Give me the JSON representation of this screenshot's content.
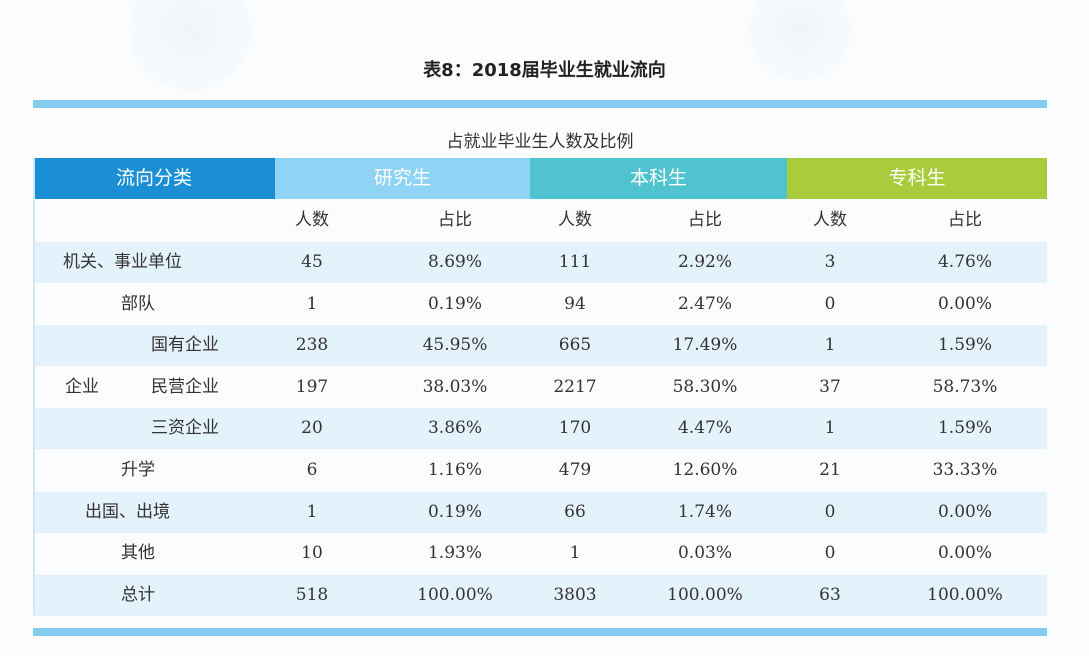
{
  "title": "表8：2018届毕业生就业流向",
  "subtitle": "占就业毕业生人数及比例",
  "colors": {
    "category": "#1a8fd6",
    "graduate": "#8fd3f5",
    "undergraduate": "#4fc3cf",
    "college": "#a8cc3c",
    "bar": "#86ccf0"
  },
  "headers": {
    "category": "流向分类",
    "graduate": "研究生",
    "undergraduate": "本科生",
    "college": "专科生"
  },
  "subheaders": [
    "人数",
    "占比",
    "人数",
    "占比",
    "人数",
    "占比"
  ],
  "group_label": "企业",
  "rows": [
    {
      "label": "机关、事业单位",
      "values": [
        "45",
        "8.69%",
        "111",
        "2.92%",
        "3",
        "4.76%"
      ]
    },
    {
      "label": "部队",
      "values": [
        "1",
        "0.19%",
        "94",
        "2.47%",
        "0",
        "0.00%"
      ]
    },
    {
      "label": "国有企业",
      "values": [
        "238",
        "45.95%",
        "665",
        "17.49%",
        "1",
        "1.59%"
      ]
    },
    {
      "label": "民营企业",
      "values": [
        "197",
        "38.03%",
        "2217",
        "58.30%",
        "37",
        "58.73%"
      ]
    },
    {
      "label": "三资企业",
      "values": [
        "20",
        "3.86%",
        "170",
        "4.47%",
        "1",
        "1.59%"
      ]
    },
    {
      "label": "升学",
      "values": [
        "6",
        "1.16%",
        "479",
        "12.60%",
        "21",
        "33.33%"
      ]
    },
    {
      "label": "出国、出境",
      "values": [
        "1",
        "0.19%",
        "66",
        "1.74%",
        "0",
        "0.00%"
      ]
    },
    {
      "label": "其他",
      "values": [
        "10",
        "1.93%",
        "1",
        "0.03%",
        "0",
        "0.00%"
      ]
    },
    {
      "label": "总计",
      "values": [
        "518",
        "100.00%",
        "3803",
        "100.00%",
        "63",
        "100.00%"
      ]
    }
  ]
}
